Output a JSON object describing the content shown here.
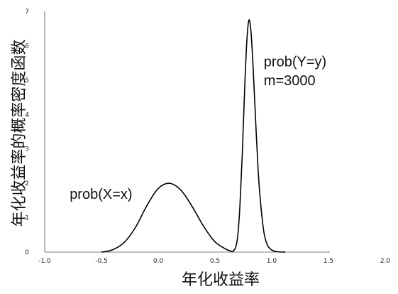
{
  "chart_data": {
    "type": "line",
    "xlabel": "年化收益率",
    "ylabel": "年化收益率的概率密度函数",
    "xlim": [
      -1.0,
      2.0
    ],
    "ylim": [
      0,
      7
    ],
    "x_ticks": [
      "-1.0",
      "-0.5",
      "0.0",
      "0.5",
      "1.0",
      "1.5",
      "2.0"
    ],
    "y_ticks": [
      "0",
      "1",
      "2",
      "3",
      "4",
      "5",
      "6",
      "7"
    ],
    "grid": false,
    "series": [
      {
        "name": "prob(X=x)",
        "color": "#000000",
        "x": [
          -0.5,
          -0.4,
          -0.3,
          -0.2,
          -0.1,
          0.0,
          0.1,
          0.2,
          0.3,
          0.4,
          0.5,
          0.6,
          0.65
        ],
        "y": [
          0.0,
          0.07,
          0.28,
          0.72,
          1.35,
          1.85,
          2.0,
          1.8,
          1.32,
          0.75,
          0.3,
          0.08,
          0.02
        ]
      },
      {
        "name": "prob(Y=y)",
        "color": "#000000",
        "x": [
          0.65,
          0.68,
          0.7,
          0.72,
          0.74,
          0.76,
          0.78,
          0.8,
          0.82,
          0.84,
          0.86,
          0.88,
          0.9,
          0.93,
          0.96,
          1.0,
          1.05,
          1.12
        ],
        "y": [
          0.0,
          0.12,
          0.45,
          1.35,
          2.8,
          4.6,
          6.1,
          6.75,
          6.3,
          5.1,
          3.7,
          2.4,
          1.5,
          0.6,
          0.22,
          0.06,
          0.01,
          0.0
        ]
      }
    ],
    "annotations": [
      {
        "text": "prob(X=x)",
        "x": -0.78,
        "y": 1.55
      },
      {
        "text": "prob(Y=y)",
        "x": 0.93,
        "y": 5.4
      },
      {
        "text": "m=3000",
        "x": 0.93,
        "y": 4.85
      }
    ]
  }
}
